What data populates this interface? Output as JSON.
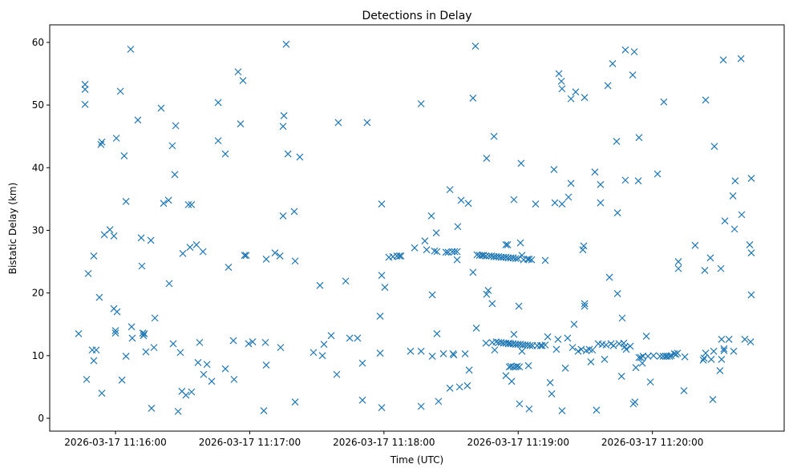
{
  "chart_data": {
    "type": "scatter",
    "title": "Detections in Delay",
    "xlabel": "Time (UTC)",
    "ylabel": "Bistatic Delay (km)",
    "x_units": "seconds after 2026-03-17 11:16:00 UTC",
    "xlim": [
      -29.4,
      298.9
    ],
    "ylim": [
      -2.05,
      62.8
    ],
    "grid": false,
    "marker": "x",
    "color": "#1f77b4",
    "x_ticks": [
      {
        "value": 0,
        "label": "2026-03-17 11:16:00"
      },
      {
        "value": 60,
        "label": "2026-03-17 11:17:00"
      },
      {
        "value": 120,
        "label": "2026-03-17 11:18:00"
      },
      {
        "value": 180,
        "label": "2026-03-17 11:19:00"
      },
      {
        "value": 240,
        "label": "2026-03-17 11:20:00"
      }
    ],
    "y_ticks": [
      {
        "value": 0,
        "label": "0"
      },
      {
        "value": 10,
        "label": "10"
      },
      {
        "value": 20,
        "label": "20"
      },
      {
        "value": 30,
        "label": "30"
      },
      {
        "value": 40,
        "label": "40"
      },
      {
        "value": 50,
        "label": "50"
      },
      {
        "value": 60,
        "label": "60"
      }
    ],
    "points": [
      [
        -16.5,
        13.5
      ],
      [
        -13.6,
        53.3
      ],
      [
        -13.6,
        52.5
      ],
      [
        -13.6,
        50.1
      ],
      [
        -12.9,
        6.2
      ],
      [
        -12.2,
        23.1
      ],
      [
        -10.4,
        10.9
      ],
      [
        -9.7,
        9.2
      ],
      [
        -9.7,
        25.9
      ],
      [
        -8.6,
        10.9
      ],
      [
        -7.2,
        19.3
      ],
      [
        -6.5,
        43.7
      ],
      [
        -6.1,
        44.1
      ],
      [
        -6.1,
        4.0
      ],
      [
        -5.0,
        29.3
      ],
      [
        -2.5,
        30.1
      ],
      [
        -0.7,
        29.1
      ],
      [
        -0.7,
        17.5
      ],
      [
        0.4,
        44.7
      ],
      [
        0,
        14.0
      ],
      [
        0,
        13.6
      ],
      [
        0.7,
        17.0
      ],
      [
        2.2,
        52.2
      ],
      [
        2.9,
        6.1
      ],
      [
        3.9,
        41.9
      ],
      [
        4.7,
        34.6
      ],
      [
        4.7,
        9.9
      ],
      [
        6.8,
        58.9
      ],
      [
        7.2,
        14.6
      ],
      [
        7.5,
        12.8
      ],
      [
        10.0,
        47.6
      ],
      [
        11.5,
        28.8
      ],
      [
        11.8,
        24.3
      ],
      [
        12.2,
        13.6
      ],
      [
        12.5,
        13.2
      ],
      [
        12.9,
        13.5
      ],
      [
        13.6,
        10.6
      ],
      [
        15.8,
        28.4
      ],
      [
        16.1,
        1.6
      ],
      [
        17.2,
        11.3
      ],
      [
        17.6,
        16.0
      ],
      [
        20.4,
        49.5
      ],
      [
        21.5,
        34.3
      ],
      [
        23.7,
        34.8
      ],
      [
        24.0,
        21.5
      ],
      [
        25.4,
        43.5
      ],
      [
        25.8,
        11.9
      ],
      [
        26.5,
        38.9
      ],
      [
        26.9,
        46.7
      ],
      [
        28.0,
        1.1
      ],
      [
        29.0,
        10.5
      ],
      [
        29.7,
        4.3
      ],
      [
        30.1,
        26.3
      ],
      [
        31.5,
        3.7
      ],
      [
        32.6,
        34.1
      ],
      [
        33.3,
        27.3
      ],
      [
        34.0,
        34.1
      ],
      [
        34.0,
        4.2
      ],
      [
        36.2,
        27.7
      ],
      [
        36.9,
        8.9
      ],
      [
        37.6,
        12.1
      ],
      [
        39.1,
        26.6
      ],
      [
        39.4,
        7.0
      ],
      [
        40.9,
        8.6
      ],
      [
        43.0,
        5.9
      ],
      [
        45.9,
        50.4
      ],
      [
        45.9,
        44.3
      ],
      [
        49.1,
        7.9
      ],
      [
        49.1,
        42.2
      ],
      [
        50.5,
        24.1
      ],
      [
        52.7,
        12.4
      ],
      [
        53.0,
        6.2
      ],
      [
        54.8,
        55.3
      ],
      [
        55.9,
        47.0
      ],
      [
        57.0,
        53.9
      ],
      [
        57.7,
        26.0
      ],
      [
        58.4,
        26.0
      ],
      [
        59.5,
        11.9
      ],
      [
        61.3,
        12.2
      ],
      [
        66.3,
        1.2
      ],
      [
        67.0,
        12.1
      ],
      [
        67.4,
        8.5
      ],
      [
        67.4,
        25.4
      ],
      [
        71.3,
        26.4
      ],
      [
        73.5,
        25.9
      ],
      [
        73.8,
        11.3
      ],
      [
        74.9,
        32.3
      ],
      [
        74.9,
        46.6
      ],
      [
        75.3,
        48.3
      ],
      [
        76.3,
        59.7
      ],
      [
        77.1,
        42.2
      ],
      [
        79.9,
        33.0
      ],
      [
        80.3,
        25.1
      ],
      [
        80.3,
        2.6
      ],
      [
        82.4,
        41.7
      ],
      [
        88.5,
        10.5
      ],
      [
        91.4,
        21.2
      ],
      [
        92.5,
        10.0
      ],
      [
        93.2,
        11.8
      ],
      [
        96.4,
        13.2
      ],
      [
        98.9,
        7.0
      ],
      [
        99.6,
        47.2
      ],
      [
        102.9,
        21.9
      ],
      [
        104.7,
        12.8
      ],
      [
        108.2,
        12.8
      ],
      [
        110.4,
        8.8
      ],
      [
        110.4,
        2.9
      ],
      [
        112.5,
        47.2
      ],
      [
        118.3,
        16.3
      ],
      [
        118.3,
        10.4
      ],
      [
        119.0,
        22.8
      ],
      [
        119.0,
        1.7
      ],
      [
        119.0,
        34.2
      ],
      [
        120.4,
        20.9
      ],
      [
        122.2,
        25.7
      ],
      [
        124.0,
        25.8
      ],
      [
        125.8,
        25.9
      ],
      [
        126.9,
        25.9
      ],
      [
        127.6,
        25.9
      ],
      [
        131.9,
        10.7
      ],
      [
        133.7,
        27.2
      ],
      [
        136.6,
        50.2
      ],
      [
        136.6,
        1.9
      ],
      [
        136.6,
        10.7
      ],
      [
        138.3,
        28.3
      ],
      [
        139.1,
        26.9
      ],
      [
        141.2,
        32.3
      ],
      [
        141.6,
        19.7
      ],
      [
        141.6,
        9.9
      ],
      [
        142.6,
        26.7
      ],
      [
        143.4,
        29.6
      ],
      [
        143.7,
        13.5
      ],
      [
        143.7,
        26.6
      ],
      [
        144.4,
        2.7
      ],
      [
        146.6,
        10.3
      ],
      [
        147.7,
        26.5
      ],
      [
        148.7,
        26.5
      ],
      [
        149.5,
        36.5
      ],
      [
        149.5,
        4.8
      ],
      [
        150.5,
        26.6
      ],
      [
        150.9,
        10.3
      ],
      [
        151.2,
        10.1
      ],
      [
        151.6,
        26.6
      ],
      [
        152.7,
        26.6
      ],
      [
        152.7,
        25.3
      ],
      [
        153.0,
        30.6
      ],
      [
        153.8,
        5.0
      ],
      [
        154.5,
        34.8
      ],
      [
        156.3,
        10.3
      ],
      [
        157.3,
        5.2
      ],
      [
        157.7,
        34.3
      ],
      [
        158.1,
        7.7
      ],
      [
        159.8,
        23.3
      ],
      [
        159.8,
        51.1
      ],
      [
        160.9,
        59.4
      ],
      [
        161.3,
        14.4
      ],
      [
        161.6,
        26.1
      ],
      [
        162.7,
        26.0
      ],
      [
        163.8,
        26.0
      ],
      [
        164.5,
        26.0
      ],
      [
        165.6,
        12.0
      ],
      [
        165.6,
        25.9
      ],
      [
        165.9,
        41.5
      ],
      [
        165.9,
        19.8
      ],
      [
        166.6,
        20.4
      ],
      [
        168.4,
        18.3
      ],
      [
        168.4,
        12.1
      ],
      [
        169.2,
        45.0
      ],
      [
        169.5,
        10.9
      ],
      [
        167.0,
        25.9
      ],
      [
        168.1,
        25.9
      ],
      [
        169.2,
        25.8
      ],
      [
        170.2,
        25.8
      ],
      [
        171.3,
        25.8
      ],
      [
        172.4,
        25.7
      ],
      [
        173.4,
        25.7
      ],
      [
        174.5,
        25.7
      ],
      [
        175.6,
        25.6
      ],
      [
        176.7,
        25.6
      ],
      [
        177.8,
        25.6
      ],
      [
        178.9,
        25.5
      ],
      [
        179.9,
        25.5
      ],
      [
        170.2,
        12.2
      ],
      [
        171.3,
        12.1
      ],
      [
        172.4,
        12.1
      ],
      [
        173.4,
        12.0
      ],
      [
        174.5,
        12.0
      ],
      [
        175.6,
        11.9
      ],
      [
        176.7,
        11.9
      ],
      [
        177.8,
        11.9
      ],
      [
        178.9,
        11.8
      ],
      [
        179.9,
        11.8
      ],
      [
        181.0,
        11.8
      ],
      [
        182.1,
        11.7
      ],
      [
        183.1,
        11.7
      ],
      [
        184.2,
        11.7
      ],
      [
        185.3,
        11.6
      ],
      [
        186.4,
        11.6
      ],
      [
        176.0,
        8.2
      ],
      [
        176.7,
        8.3
      ],
      [
        177.8,
        8.2
      ],
      [
        178.9,
        8.2
      ],
      [
        179.6,
        8.3
      ],
      [
        180.6,
        8.2
      ],
      [
        174.5,
        27.7
      ],
      [
        175.3,
        27.7
      ],
      [
        181.0,
        28.0
      ],
      [
        181.3,
        40.7
      ],
      [
        181.7,
        26.0
      ],
      [
        182.4,
        25.3
      ],
      [
        184.2,
        25.4
      ],
      [
        184.9,
        25.4
      ],
      [
        186.0,
        25.3
      ],
      [
        184.6,
        8.4
      ],
      [
        180.6,
        2.3
      ],
      [
        184.9,
        1.5
      ],
      [
        177.1,
        5.9
      ],
      [
        174.5,
        6.8
      ],
      [
        178.1,
        34.9
      ],
      [
        180.3,
        17.9
      ],
      [
        176.0,
        12.0
      ],
      [
        178.1,
        13.4
      ],
      [
        181.7,
        10.7
      ],
      [
        187.8,
        34.2
      ],
      [
        188.5,
        11.6
      ],
      [
        190.0,
        11.6
      ],
      [
        190.7,
        11.6
      ],
      [
        192.1,
        11.7
      ],
      [
        192.1,
        25.2
      ],
      [
        193.2,
        13.0
      ],
      [
        194.3,
        5.7
      ],
      [
        195.0,
        3.9
      ],
      [
        196.0,
        39.7
      ],
      [
        196.4,
        34.4
      ],
      [
        197.1,
        11.0
      ],
      [
        197.8,
        12.6
      ],
      [
        198.2,
        55.0
      ],
      [
        199.3,
        53.8
      ],
      [
        199.6,
        52.6
      ],
      [
        199.6,
        34.2
      ],
      [
        199.6,
        1.2
      ],
      [
        201.1,
        8.0
      ],
      [
        202.1,
        12.8
      ],
      [
        202.5,
        35.3
      ],
      [
        203.6,
        51.0
      ],
      [
        203.6,
        37.5
      ],
      [
        204.3,
        11.3
      ],
      [
        205.0,
        15.0
      ],
      [
        205.7,
        52.1
      ],
      [
        206.8,
        10.7
      ],
      [
        208.2,
        11.0
      ],
      [
        208.9,
        26.9
      ],
      [
        209.3,
        27.5
      ],
      [
        209.7,
        18.3
      ],
      [
        209.7,
        17.9
      ],
      [
        209.7,
        51.2
      ],
      [
        210.4,
        10.8
      ],
      [
        211.8,
        11.0
      ],
      [
        212.5,
        9.0
      ],
      [
        213.2,
        10.9
      ],
      [
        214.3,
        39.3
      ],
      [
        215.0,
        1.3
      ],
      [
        215.8,
        11.9
      ],
      [
        216.8,
        34.4
      ],
      [
        216.8,
        37.3
      ],
      [
        217.6,
        11.8
      ],
      [
        218.6,
        9.4
      ],
      [
        219.3,
        11.7
      ],
      [
        220.1,
        53.1
      ],
      [
        220.8,
        22.5
      ],
      [
        221.5,
        11.9
      ],
      [
        222.2,
        56.6
      ],
      [
        222.6,
        11.6
      ],
      [
        224.0,
        44.2
      ],
      [
        224.4,
        32.8
      ],
      [
        224.4,
        19.9
      ],
      [
        225.1,
        11.9
      ],
      [
        226.2,
        6.7
      ],
      [
        226.5,
        16.0
      ],
      [
        227.2,
        12.0
      ],
      [
        227.6,
        11.4
      ],
      [
        227.9,
        58.8
      ],
      [
        227.9,
        38.0
      ],
      [
        228.3,
        11.0
      ],
      [
        230.1,
        11.5
      ],
      [
        231.2,
        54.8
      ],
      [
        231.5,
        2.3
      ],
      [
        231.9,
        58.5
      ],
      [
        232.2,
        2.6
      ],
      [
        232.6,
        8.1
      ],
      [
        233.7,
        37.9
      ],
      [
        234.0,
        44.8
      ],
      [
        234.0,
        9.7
      ],
      [
        234.8,
        9.7
      ],
      [
        235.5,
        8.8
      ],
      [
        235.8,
        9.9
      ],
      [
        237.3,
        13.1
      ],
      [
        238.0,
        9.9
      ],
      [
        239.1,
        5.8
      ],
      [
        240.5,
        10.0
      ],
      [
        242.3,
        39.0
      ],
      [
        243.4,
        9.9
      ],
      [
        244.8,
        9.9
      ],
      [
        245.1,
        50.5
      ],
      [
        245.9,
        9.9
      ],
      [
        246.6,
        9.9
      ],
      [
        247.7,
        9.9
      ],
      [
        248.4,
        10.0
      ],
      [
        249.8,
        10.3
      ],
      [
        250.5,
        10.2
      ],
      [
        251.2,
        10.4
      ],
      [
        251.6,
        25.0
      ],
      [
        251.6,
        23.9
      ],
      [
        254.1,
        4.4
      ],
      [
        254.5,
        9.8
      ],
      [
        259.1,
        27.6
      ],
      [
        262.7,
        9.3
      ],
      [
        263.1,
        9.6
      ],
      [
        263.4,
        23.6
      ],
      [
        263.8,
        50.8
      ],
      [
        263.8,
        10.4
      ],
      [
        265.9,
        25.6
      ],
      [
        266.3,
        9.4
      ],
      [
        267.0,
        3.0
      ],
      [
        267.4,
        10.7
      ],
      [
        267.7,
        43.4
      ],
      [
        270.2,
        7.6
      ],
      [
        270.6,
        23.9
      ],
      [
        270.9,
        9.4
      ],
      [
        270.9,
        12.6
      ],
      [
        271.7,
        57.2
      ],
      [
        272.0,
        11.1
      ],
      [
        272.0,
        10.8
      ],
      [
        272.4,
        31.5
      ],
      [
        274.2,
        12.6
      ],
      [
        276.0,
        35.5
      ],
      [
        276.3,
        10.7
      ],
      [
        276.7,
        30.2
      ],
      [
        277.0,
        37.9
      ],
      [
        279.6,
        57.4
      ],
      [
        279.9,
        32.5
      ],
      [
        281.3,
        12.6
      ],
      [
        283.5,
        27.7
      ],
      [
        283.9,
        12.2
      ],
      [
        284.2,
        26.4
      ],
      [
        284.2,
        38.3
      ],
      [
        284.2,
        19.7
      ]
    ]
  }
}
